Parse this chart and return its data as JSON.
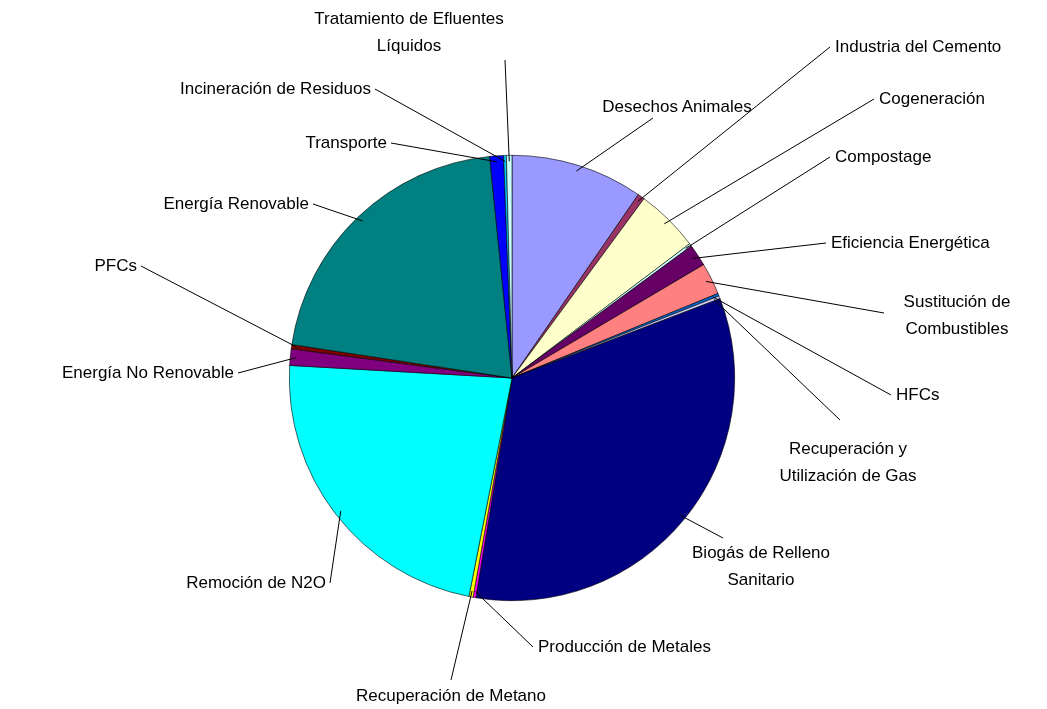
{
  "chart_data": {
    "type": "pie",
    "categories": [
      "Desechos Animales",
      "Industria del Cemento",
      "Cogeneración",
      "Compostage",
      "Eficiencia Energética",
      "Sustitución de Combustibles",
      "HFCs",
      "Recuperación y Utilización de Gas",
      "Biogás de Relleno Sanitario",
      "Producción de Metales",
      "Recuperación de Metano",
      "Remoción de N2O",
      "Energía No Renovable",
      "PFCs",
      "Energía Renovable",
      "Transporte",
      "Incineración de Residuos",
      "Tratamiento de Efluentes Líquidos"
    ],
    "values": [
      9.6,
      0.5,
      4.6,
      0.2,
      1.6,
      2.3,
      0.2,
      0.2,
      33.4,
      0.2,
      0.3,
      22.8,
      1.2,
      0.3,
      21.0,
      1.0,
      0.2,
      0.4
    ],
    "colors": [
      "#9999ff",
      "#993366",
      "#ffffcc",
      "#ccffff",
      "#660066",
      "#ff8080",
      "#0066cc",
      "#ccccff",
      "#000080",
      "#ff00ff",
      "#ffff00",
      "#00ffff",
      "#800080",
      "#800000",
      "#008080",
      "#0000ff",
      "#00ccff",
      "#ccffff"
    ]
  }
}
